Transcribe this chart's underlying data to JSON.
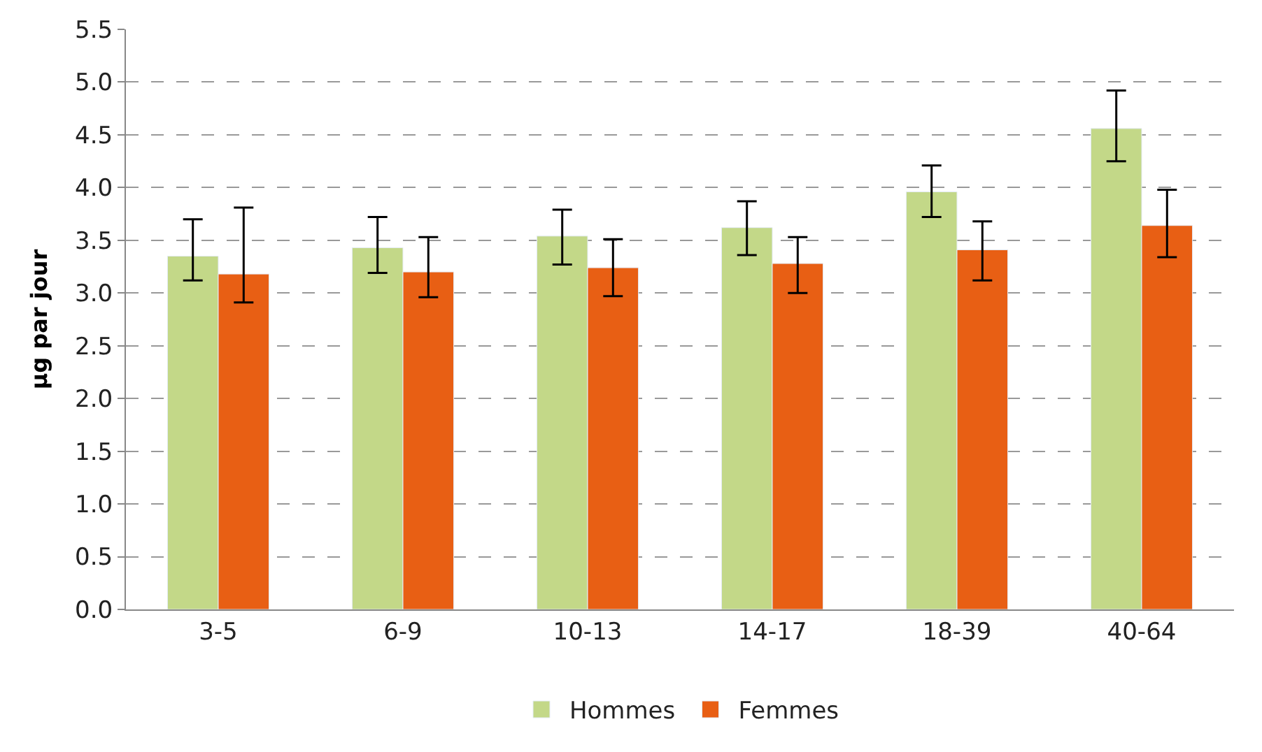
{
  "chart_data": {
    "type": "bar",
    "ylabel": "µg par jour",
    "categories": [
      "3-5",
      "6-9",
      "10-13",
      "14-17",
      "18-39",
      "40-64"
    ],
    "series": [
      {
        "name": "Hommes",
        "color": "#c3d888",
        "values": [
          3.35,
          3.43,
          3.54,
          3.62,
          3.96,
          4.56
        ],
        "errors": [
          [
            3.12,
            3.7
          ],
          [
            3.19,
            3.72
          ],
          [
            3.27,
            3.79
          ],
          [
            3.36,
            3.87
          ],
          [
            3.72,
            4.21
          ],
          [
            4.25,
            4.92
          ]
        ]
      },
      {
        "name": "Femmes",
        "color": "#e85f14",
        "values": [
          3.18,
          3.2,
          3.24,
          3.28,
          3.41,
          3.64
        ],
        "errors": [
          [
            2.91,
            3.81
          ],
          [
            2.96,
            3.53
          ],
          [
            2.97,
            3.51
          ],
          [
            3.0,
            3.53
          ],
          [
            3.12,
            3.68
          ],
          [
            3.34,
            3.98
          ]
        ]
      }
    ],
    "ylim": [
      0,
      5.5
    ],
    "yticks": [
      {
        "value": 0,
        "label": "0.0"
      },
      {
        "value": 0.5,
        "label": "0.5"
      },
      {
        "value": 1,
        "label": "1.0"
      },
      {
        "value": 1.5,
        "label": "1.5"
      },
      {
        "value": 2,
        "label": "2.0"
      },
      {
        "value": 2.5,
        "label": "2.5"
      },
      {
        "value": 3,
        "label": "3.0"
      },
      {
        "value": 3.5,
        "label": "3.5"
      },
      {
        "value": 4,
        "label": "4.0"
      },
      {
        "value": 4.5,
        "label": "4.5"
      },
      {
        "value": 5,
        "label": "5.0"
      },
      {
        "value": 5.5,
        "label": "5.5"
      }
    ],
    "grid": "y",
    "legend": "bottom"
  }
}
